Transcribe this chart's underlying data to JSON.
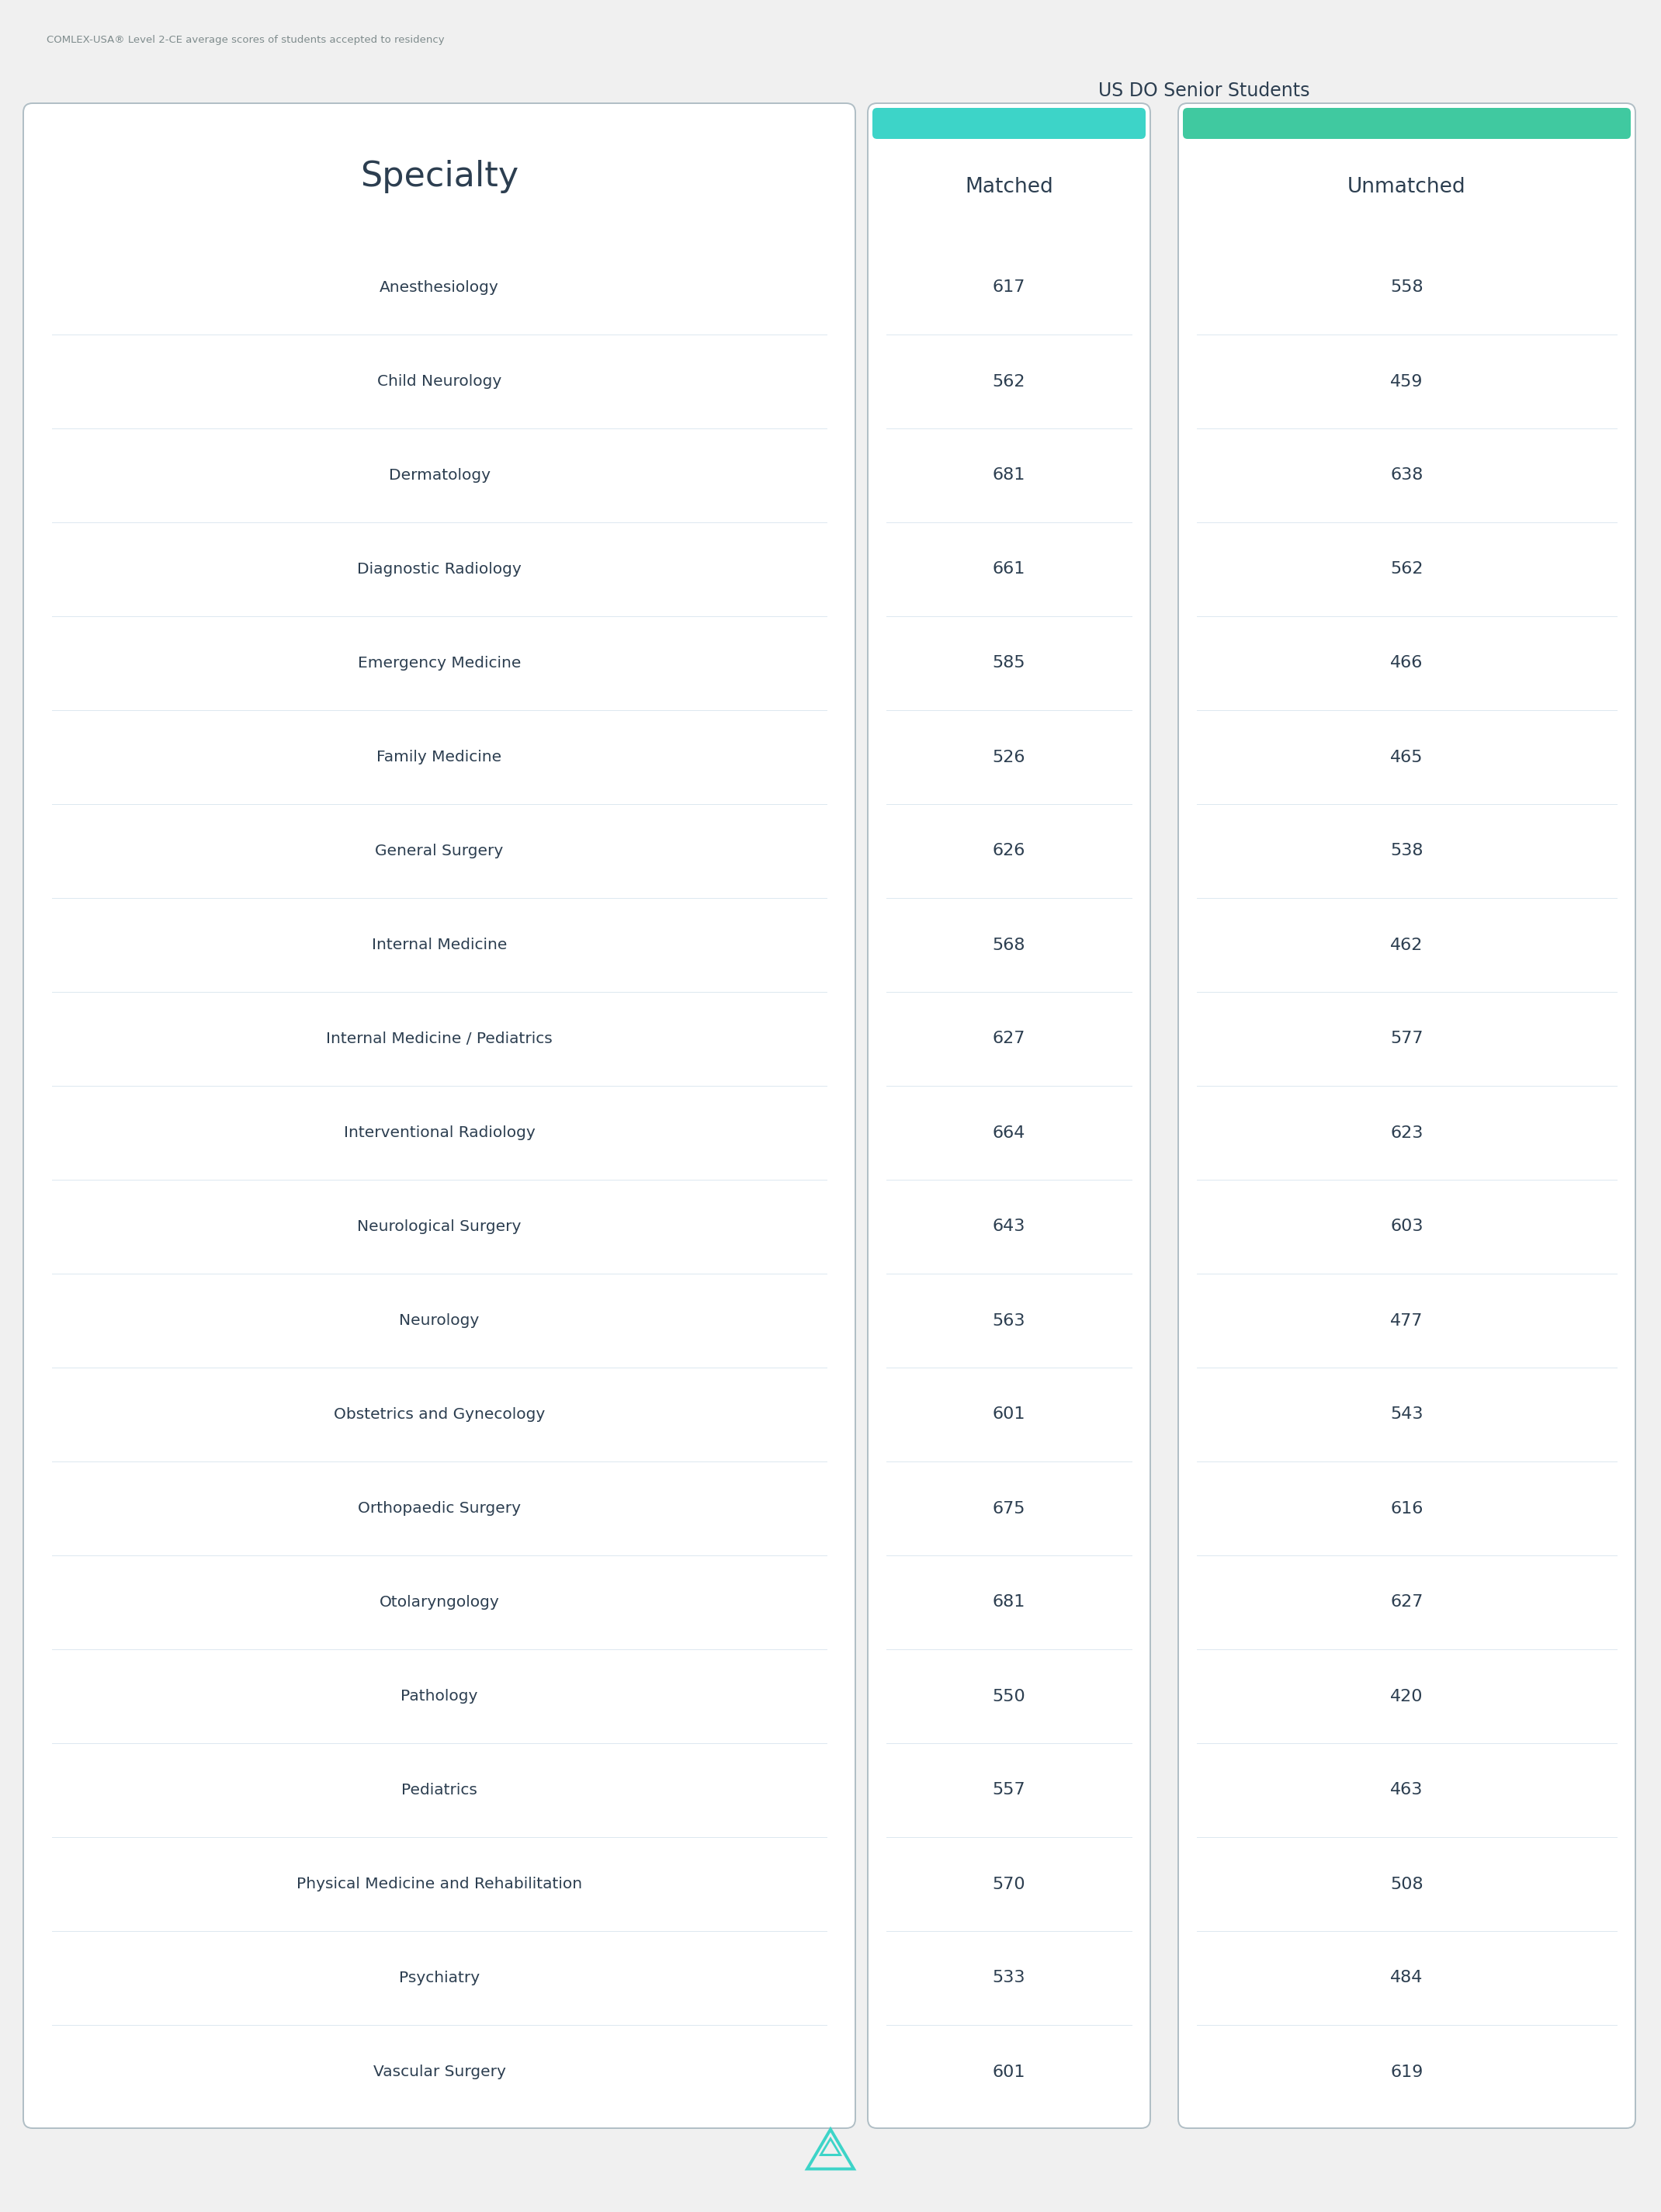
{
  "title": "COMLEX-USA® Level 2-CE average scores of students accepted to residency",
  "subtitle": "US DO Senior Students",
  "col_headers": [
    "Specialty",
    "Matched",
    "Unmatched"
  ],
  "specialties": [
    "Anesthesiology",
    "Child Neurology",
    "Dermatology",
    "Diagnostic Radiology",
    "Emergency Medicine",
    "Family Medicine",
    "General Surgery",
    "Internal Medicine",
    "Internal Medicine / Pediatrics",
    "Interventional Radiology",
    "Neurological Surgery",
    "Neurology",
    "Obstetrics and Gynecology",
    "Orthopaedic Surgery",
    "Otolaryngology",
    "Pathology",
    "Pediatrics",
    "Physical Medicine and Rehabilitation",
    "Psychiatry",
    "Vascular Surgery"
  ],
  "matched": [
    617,
    562,
    681,
    661,
    585,
    526,
    626,
    568,
    627,
    664,
    643,
    563,
    601,
    675,
    681,
    550,
    557,
    570,
    533,
    601
  ],
  "unmatched": [
    558,
    459,
    638,
    562,
    466,
    465,
    538,
    462,
    577,
    623,
    603,
    477,
    543,
    616,
    627,
    420,
    463,
    508,
    484,
    619
  ],
  "bg_color": "#f0f0f0",
  "card_bg": "#ffffff",
  "card_border": "#b0bec5",
  "teal_header": "#3dd4c8",
  "green_header": "#40c9a0",
  "header_text_color": "#2c3e50",
  "specialty_text_color": "#2c3e50",
  "value_text_color": "#2c3e50",
  "title_color": "#7f8c8d",
  "subtitle_color": "#2c3e50",
  "row_line_color": "#dce8f0",
  "logo_color": "#3dd4c8",
  "logo_dark_color": "#1a2e5a"
}
